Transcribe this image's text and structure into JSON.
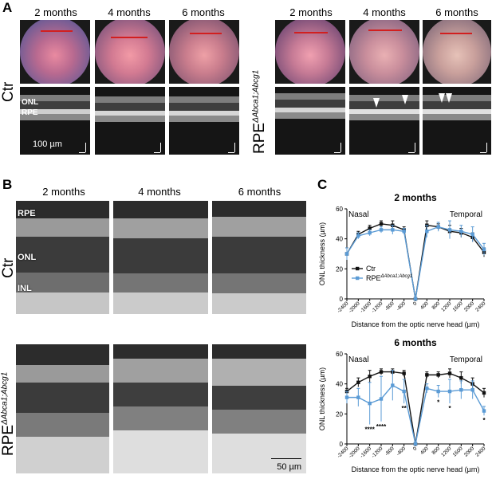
{
  "panels": {
    "a": "A",
    "b": "B",
    "c": "C"
  },
  "groups": {
    "ctr": "Ctr",
    "ko_base": "RPE",
    "ko_sup": "ΔAbca1;Abcg1"
  },
  "timepoints": [
    "2 months",
    "4 months",
    "6 months"
  ],
  "panel_a": {
    "onl": "ONL",
    "rpe": "RPE",
    "scale": "100 µm"
  },
  "panel_b": {
    "rpe": "RPE",
    "onl": "ONL",
    "inl": "INL",
    "scale": "50 µm"
  },
  "chart_data": [
    {
      "type": "line",
      "title": "2 months",
      "left_note": "Nasal",
      "right_note": "Temporal",
      "xlabel": "Distance from the optic nerve head (µm)",
      "ylabel": "ONL thickness (µm)",
      "x": [
        -2400,
        -2000,
        -1600,
        -1200,
        -800,
        -400,
        0,
        400,
        800,
        1200,
        1600,
        2000,
        2400
      ],
      "xticks": [
        "-2400",
        "-2000",
        "-1600",
        "-1200",
        "-800",
        "-400",
        "0",
        "400",
        "800",
        "1200",
        "1600",
        "2000",
        "2400"
      ],
      "ylim": [
        0,
        60
      ],
      "yticks": [
        "0",
        "20",
        "40",
        "60"
      ],
      "legend": {
        "ctr": "Ctr",
        "ko_base": "RPE",
        "ko_sup": "ΔAbca1;Abcg1"
      },
      "series": [
        {
          "name": "Ctr",
          "color": "#111111",
          "values": [
            30,
            43,
            47,
            50,
            49,
            46,
            0,
            49,
            48,
            45,
            44,
            41,
            31
          ],
          "err": [
            4,
            2,
            2,
            2,
            3,
            2,
            0,
            3,
            2,
            4,
            3,
            3,
            3
          ]
        },
        {
          "name": "RPE ΔAbca1;Abcg1",
          "color": "#5b9bd5",
          "values": [
            30,
            42,
            44,
            46,
            46,
            45,
            0,
            45,
            48,
            46,
            45,
            43,
            33
          ],
          "err": [
            4,
            2,
            2,
            2,
            3,
            2,
            0,
            4,
            3,
            6,
            4,
            5,
            4
          ]
        }
      ],
      "stars": []
    },
    {
      "type": "line",
      "title": "6 months",
      "left_note": "Nasal",
      "right_note": "Temporal",
      "xlabel": "Distance from the optic nerve head (µm)",
      "ylabel": "ONL thickness (µm)",
      "x": [
        -2400,
        -2000,
        -1600,
        -1200,
        -800,
        -400,
        0,
        400,
        800,
        1200,
        1600,
        2000,
        2400
      ],
      "xticks": [
        "-2400",
        "-2000",
        "-1600",
        "-1200",
        "-800",
        "-400",
        "0",
        "400",
        "800",
        "1200",
        "1600",
        "2000",
        "2400"
      ],
      "ylim": [
        0,
        60
      ],
      "yticks": [
        "0",
        "20",
        "40",
        "60"
      ],
      "series": [
        {
          "name": "Ctr",
          "color": "#111111",
          "values": [
            35,
            41,
            45,
            48,
            48,
            47,
            0,
            46,
            46,
            47,
            44,
            40,
            34
          ],
          "err": [
            2,
            3,
            4,
            2,
            2,
            2,
            0,
            2,
            2,
            3,
            4,
            4,
            3
          ]
        },
        {
          "name": "RPE ΔAbca1;Abcg1",
          "color": "#5b9bd5",
          "values": [
            31,
            31,
            27,
            30,
            39,
            35,
            0,
            37,
            35,
            35,
            36,
            36,
            22
          ],
          "err": [
            4,
            6,
            14,
            15,
            10,
            8,
            0,
            3,
            4,
            8,
            6,
            6,
            3
          ]
        }
      ],
      "stars": [
        {
          "x": -1600,
          "label": "****"
        },
        {
          "x": -1200,
          "label": "****"
        },
        {
          "x": -400,
          "label": "**"
        },
        {
          "x": 800,
          "label": "*"
        },
        {
          "x": 1200,
          "label": "*"
        },
        {
          "x": 2400,
          "label": "*"
        }
      ]
    }
  ]
}
